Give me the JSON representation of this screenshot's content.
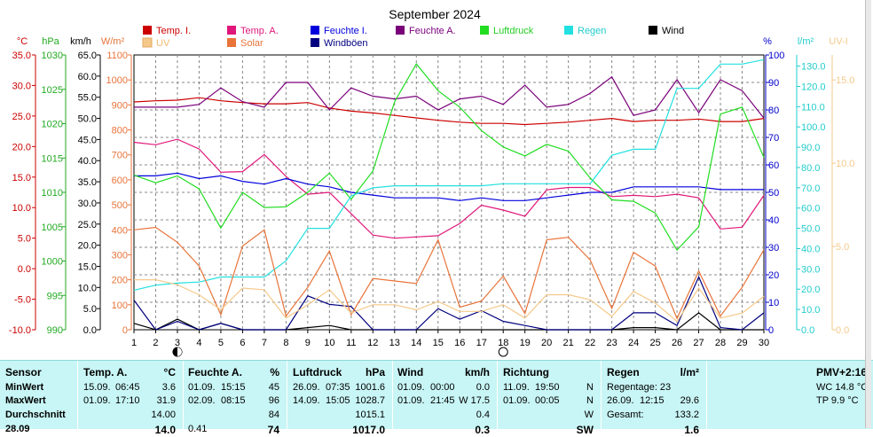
{
  "title": "September 2024",
  "legend": [
    {
      "key": "temp_i",
      "label": "Temp. I.",
      "color": "#cc0000"
    },
    {
      "key": "temp_a",
      "label": "Temp. A.",
      "color": "#e0177a"
    },
    {
      "key": "feuchte_i",
      "label": "Feuchte I.",
      "color": "#0000dd"
    },
    {
      "key": "feuchte_a",
      "label": "Feuchte A.",
      "color": "#7a007a"
    },
    {
      "key": "luftdruck",
      "label": "Luftdruck",
      "color": "#22dd22"
    },
    {
      "key": "regen",
      "label": "Regen",
      "color": "#22e0e0"
    },
    {
      "key": "wind",
      "label": "Wind",
      "color": "#000000"
    },
    {
      "key": "uv",
      "label": "UV",
      "color": "#f5c98a"
    },
    {
      "key": "solar",
      "label": "Solar",
      "color": "#e8743a"
    },
    {
      "key": "windboeen",
      "label": "Windböen",
      "color": "#000080"
    }
  ],
  "axes": {
    "temp": {
      "unit": "°C",
      "color": "#cc0000",
      "ticks": [
        "35.0",
        "30.0",
        "25.0",
        "20.0",
        "15.0",
        "10.0",
        "5.0",
        "0.0",
        "-5.0",
        "-10.0"
      ]
    },
    "pressure": {
      "unit": "hPa",
      "color": "#22aa22",
      "ticks": [
        "1030",
        "1025",
        "1020",
        "1015",
        "1010",
        "1005",
        "1000",
        "995",
        "990"
      ]
    },
    "wind": {
      "unit": "km/h",
      "color": "#000000",
      "ticks": [
        "65.0",
        "60.0",
        "55.0",
        "50.0",
        "45.0",
        "40.0",
        "35.0",
        "30.0",
        "25.0",
        "20.0",
        "15.0",
        "10.0",
        "5.0",
        "0.0"
      ]
    },
    "solar": {
      "unit": "W/m²",
      "color": "#e8743a",
      "ticks": [
        "1100",
        "1000",
        "900",
        "800",
        "700",
        "600",
        "500",
        "400",
        "300",
        "200",
        "100",
        "0"
      ]
    },
    "humidity": {
      "unit": "%",
      "color": "#0000cc",
      "ticks": [
        "100",
        "90",
        "80",
        "70",
        "60",
        "50",
        "40",
        "30",
        "20",
        "10",
        "0"
      ]
    },
    "rain": {
      "unit": "l/m²",
      "color": "#22cccc",
      "ticks": [
        "130.0",
        "120.0",
        "110.0",
        "100.0",
        "90.0",
        "80.0",
        "70.0",
        "60.0",
        "50.0",
        "40.0",
        "30.0",
        "20.0",
        "10.0",
        "0.0"
      ]
    },
    "uv": {
      "unit": "UV-I",
      "color": "#f5c98a",
      "ticks": [
        "15.0",
        "10.0",
        "5.0",
        "0.0"
      ]
    }
  },
  "x_labels": [
    "1",
    "2",
    "3",
    "4",
    "5",
    "6",
    "7",
    "8",
    "9",
    "10",
    "11",
    "12",
    "13",
    "14",
    "15",
    "16",
    "17",
    "18",
    "19",
    "20",
    "21",
    "22",
    "23",
    "24",
    "25",
    "26",
    "27",
    "28",
    "29",
    "30"
  ],
  "moon_markers": [
    {
      "day": 3,
      "phase": "new-moon"
    },
    {
      "day": 18,
      "phase": "full-moon"
    }
  ],
  "chart_data": {
    "type": "line",
    "x": [
      1,
      2,
      3,
      4,
      5,
      6,
      7,
      8,
      9,
      10,
      11,
      12,
      13,
      14,
      15,
      16,
      17,
      18,
      19,
      20,
      21,
      22,
      23,
      24,
      25,
      26,
      27,
      28,
      29,
      30
    ],
    "series": [
      {
        "name": "Temp. I.",
        "axis": "temp",
        "values": [
          27.3,
          27.5,
          27.6,
          28.0,
          27.5,
          27.2,
          27.0,
          27.0,
          27.2,
          26.3,
          25.8,
          25.5,
          25.1,
          24.7,
          24.3,
          24.0,
          23.8,
          23.8,
          23.6,
          23.8,
          24.0,
          24.3,
          24.6,
          24.1,
          24.3,
          24.3,
          24.5,
          24.1,
          24.1,
          24.6
        ]
      },
      {
        "name": "Temp. A.",
        "axis": "temp",
        "values": [
          20.7,
          20.3,
          21.2,
          19.6,
          15.8,
          15.9,
          18.7,
          15.1,
          12.2,
          12.5,
          9.0,
          5.5,
          5.0,
          5.2,
          5.4,
          7.4,
          10.4,
          9.6,
          8.6,
          12.9,
          13.3,
          13.3,
          11.8,
          12.0,
          11.8,
          12.2,
          11.6,
          6.5,
          6.8,
          12.0
        ]
      },
      {
        "name": "Feuchte I.",
        "axis": "humidity",
        "values": [
          56,
          56,
          57,
          55,
          56,
          54,
          53,
          55,
          53,
          52,
          50,
          49,
          48,
          48,
          48,
          47,
          48,
          47,
          47,
          48,
          49,
          50,
          50,
          52,
          52,
          52,
          52,
          51,
          51,
          51
        ]
      },
      {
        "name": "Feuchte A.",
        "axis": "humidity",
        "values": [
          81,
          81,
          81,
          82,
          88,
          83,
          81,
          90,
          90,
          80,
          88,
          85,
          84,
          85,
          80,
          84,
          85,
          82,
          89,
          81,
          82,
          86,
          92,
          78,
          80,
          91,
          79,
          91,
          87,
          77
        ]
      },
      {
        "name": "Luftdruck",
        "axis": "pressure",
        "values": [
          1012.5,
          1011.4,
          1012.4,
          1010.5,
          1004.8,
          1010.0,
          1007.8,
          1007.9,
          1010.0,
          1012.8,
          1009.0,
          1013.1,
          1023.2,
          1028.7,
          1024.8,
          1022.4,
          1019.0,
          1016.6,
          1015.3,
          1017.0,
          1016.0,
          1012.1,
          1008.9,
          1008.7,
          1007.0,
          1001.6,
          1005.0,
          1021.4,
          1022.4,
          1015.1
        ]
      },
      {
        "name": "Regen",
        "axis": "rain",
        "values": [
          19.5,
          22.0,
          23.0,
          23.5,
          26.0,
          26.0,
          26.0,
          34.0,
          50.0,
          50.0,
          66.0,
          70.0,
          71.0,
          71.0,
          71.0,
          71.0,
          71.0,
          72.0,
          72.0,
          72.0,
          72.0,
          72.0,
          86.0,
          89.0,
          89.0,
          119.0,
          119.0,
          131.0,
          131.0,
          133.2
        ]
      },
      {
        "name": "Wind",
        "axis": "wind",
        "values": [
          1.5,
          0.0,
          2.5,
          0.0,
          1.5,
          0.0,
          0.0,
          0.0,
          0.5,
          1.0,
          0.0,
          0.0,
          0.0,
          0.0,
          0.0,
          0.0,
          0.0,
          0.0,
          0.0,
          0.0,
          0.0,
          0.0,
          0.0,
          0.5,
          0.5,
          0.0,
          4.0,
          0.0,
          0.0,
          0.0
        ]
      },
      {
        "name": "Windböen",
        "axis": "wind",
        "values": [
          7.0,
          0.0,
          2.0,
          0.0,
          1.5,
          0.0,
          0.0,
          0.0,
          8.0,
          6.0,
          5.5,
          0.0,
          0.0,
          0.0,
          5.0,
          2.5,
          4.5,
          2.0,
          1.0,
          0.0,
          0.0,
          0.0,
          0.0,
          4.0,
          4.0,
          1.0,
          12.5,
          0.5,
          0.0,
          4.0
        ]
      },
      {
        "name": "Solar",
        "axis": "solar",
        "values": [
          400,
          410,
          350,
          255,
          60,
          335,
          400,
          55,
          170,
          315,
          60,
          205,
          195,
          185,
          360,
          90,
          115,
          215,
          65,
          360,
          370,
          280,
          85,
          310,
          255,
          45,
          235,
          55,
          170,
          320
        ]
      },
      {
        "name": "UV",
        "axis": "uv",
        "values": [
          3.0,
          3.0,
          2.7,
          2.1,
          1.2,
          2.5,
          2.4,
          0.7,
          1.5,
          2.4,
          1.0,
          1.5,
          1.5,
          1.2,
          1.7,
          1.1,
          1.1,
          1.5,
          0.7,
          2.1,
          2.1,
          1.8,
          0.8,
          2.3,
          1.6,
          0.5,
          2.5,
          0.7,
          1.0,
          2.0
        ]
      }
    ]
  },
  "stats": {
    "sensor": {
      "header": "Sensor",
      "rows": [
        "MinWert",
        "MaxWert",
        "Durchschnitt",
        "28.09"
      ]
    },
    "temp_a": {
      "header": "Temp. A.",
      "unit": "°C",
      "min": {
        "date": "15.09.",
        "time": "06:45",
        "value": "3.6"
      },
      "max": {
        "date": "01.09.",
        "time": "17:10",
        "value": "31.9"
      },
      "avg": "14.00",
      "last": "14.0"
    },
    "feuchte_a": {
      "header": "Feuchte A.",
      "unit": "%",
      "min": {
        "date": "01.09.",
        "time": "15:15",
        "value": "45"
      },
      "max": {
        "date": "02.09.",
        "time": "08:15",
        "value": "96"
      },
      "avg": "84",
      "last_label": "0.41",
      "last": "74"
    },
    "luftdruck": {
      "header": "Luftdruck",
      "unit": "hPa",
      "min": {
        "date": "26.09.",
        "time": "07:35",
        "value": "1001.6"
      },
      "max": {
        "date": "14.09.",
        "time": "15:05",
        "value": "1028.7"
      },
      "avg": "1015.1",
      "last": "1017.0"
    },
    "wind": {
      "header": "Wind",
      "unit": "km/h",
      "min": {
        "date": "01.09.",
        "time": "00:00",
        "value": "0.0"
      },
      "max": {
        "date": "01.09.",
        "time": "21:45",
        "value": "W 17.5"
      },
      "avg": "0.4",
      "last": "0.3"
    },
    "richtung": {
      "header": "Richtung",
      "min": {
        "date": "11.09.",
        "time": "19:50",
        "value": "N"
      },
      "max": {
        "date": "01.09.",
        "time": "00:05",
        "value": "N"
      },
      "avg": "W",
      "last": "SW"
    },
    "regen": {
      "header": "Regen",
      "unit": "l/m²",
      "regentage": "Regentage: 23",
      "max": {
        "date": "26.09.",
        "time": "12:15",
        "value": "29.6"
      },
      "gesamt_label": "Gesamt:",
      "gesamt": "133.2",
      "last": "1.6"
    },
    "pmv": {
      "header": "PMV+2:16",
      "wc": "WC 14.8 °C",
      "tp": "TP 9.9 °C"
    }
  }
}
